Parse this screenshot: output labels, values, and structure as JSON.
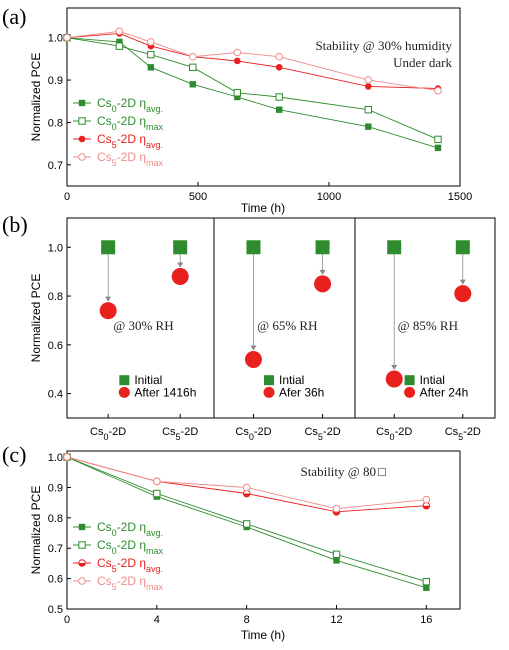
{
  "chart_data": [
    {
      "panel": "(a)",
      "type": "line",
      "xlabel": "Time (h)",
      "ylabel": "Normalized PCE",
      "xlim": [
        0,
        1500
      ],
      "ylim": [
        0.65,
        1.07
      ],
      "xticks": [
        0,
        500,
        1000,
        1500
      ],
      "yticks": [
        0.7,
        0.8,
        0.9,
        1.0
      ],
      "annotation": [
        "Stability @ 30% humidity",
        "Under dark"
      ],
      "legend_position": "left",
      "colors": {
        "cs0": "#2e8b2e",
        "cs5": "#e8201e",
        "cs5_max": "#f08a8a"
      },
      "series": [
        {
          "base": "Cs",
          "sub": "0",
          "mid": "-2D η",
          "tail": "avg.",
          "color": "#2e8b2e",
          "marker": "square-filled",
          "x": [
            0,
            200,
            320,
            480,
            650,
            810,
            1150,
            1416
          ],
          "y": [
            1.0,
            0.99,
            0.93,
            0.89,
            0.86,
            0.83,
            0.79,
            0.74
          ]
        },
        {
          "base": "Cs",
          "sub": "0",
          "mid": "-2D η",
          "tail": "max",
          "color": "#2e8b2e",
          "marker": "square-open",
          "x": [
            0,
            200,
            320,
            480,
            650,
            810,
            1150,
            1416
          ],
          "y": [
            1.0,
            0.98,
            0.96,
            0.93,
            0.87,
            0.86,
            0.83,
            0.76
          ]
        },
        {
          "base": "Cs",
          "sub": "5",
          "mid": "-2D η",
          "tail": "avg.",
          "color": "#e8201e",
          "marker": "circle-filled",
          "x": [
            0,
            200,
            320,
            480,
            650,
            810,
            1150,
            1416
          ],
          "y": [
            1.0,
            1.01,
            0.98,
            0.955,
            0.945,
            0.93,
            0.885,
            0.88
          ]
        },
        {
          "base": "Cs",
          "sub": "5",
          "mid": "-2D η",
          "tail": "max",
          "color": "#f08a8a",
          "marker": "circle-open",
          "x": [
            0,
            200,
            320,
            480,
            650,
            810,
            1150,
            1416
          ],
          "y": [
            1.0,
            1.015,
            0.99,
            0.955,
            0.965,
            0.955,
            0.9,
            0.875
          ]
        }
      ]
    },
    {
      "panel": "(b)",
      "type": "scatter",
      "ylabel": "Normalized PCE",
      "ylim": [
        0.3,
        1.12
      ],
      "yticks": [
        0.4,
        0.6,
        0.8,
        1.0
      ],
      "subpanels": [
        {
          "annotation": "@ 30% RH",
          "legend": [
            "Initial",
            "After 1416h"
          ],
          "categories": [
            {
              "base": "Cs",
              "sub": "0",
              "tail": "-2D"
            },
            {
              "base": "Cs",
              "sub": "5",
              "tail": "-2D"
            }
          ],
          "initial": [
            1.0,
            1.0
          ],
          "after": [
            0.74,
            0.88
          ]
        },
        {
          "annotation": "@ 65% RH",
          "legend": [
            "Intial",
            "Afer 36h"
          ],
          "categories": [
            {
              "base": "Cs",
              "sub": "0",
              "tail": "-2D"
            },
            {
              "base": "Cs",
              "sub": "5",
              "tail": "-2D"
            }
          ],
          "initial": [
            1.0,
            1.0
          ],
          "after": [
            0.54,
            0.85
          ]
        },
        {
          "annotation": "@ 85% RH",
          "legend": [
            "Intial",
            "After 24h"
          ],
          "categories": [
            {
              "base": "Cs",
              "sub": "0",
              "tail": "-2D"
            },
            {
              "base": "Cs",
              "sub": "5",
              "tail": "-2D"
            }
          ],
          "initial": [
            1.0,
            1.0
          ],
          "after": [
            0.46,
            0.81
          ]
        }
      ],
      "colors": {
        "initial": "#2e8b2e",
        "after": "#e8201e",
        "arrow": "#888888"
      }
    },
    {
      "panel": "(c)",
      "type": "line",
      "xlabel": "Time (h)",
      "ylabel": "Normalized PCE",
      "xlim": [
        0,
        17.5
      ],
      "ylim": [
        0.5,
        1.02
      ],
      "xticks": [
        0,
        4,
        8,
        12,
        16
      ],
      "yticks": [
        0.5,
        0.6,
        0.7,
        0.8,
        0.9,
        1.0
      ],
      "annotation": "Stability @ 80",
      "annotation_unit_glyph": "□",
      "legend_position": "left",
      "series": [
        {
          "base": "Cs",
          "sub": "0",
          "mid": "-2D η",
          "tail": "avg.",
          "color": "#2e8b2e",
          "marker": "square-filled",
          "x": [
            0,
            4,
            8,
            12,
            16
          ],
          "y": [
            1.0,
            0.87,
            0.77,
            0.66,
            0.57
          ]
        },
        {
          "base": "Cs",
          "sub": "0",
          "mid": "-2D η",
          "tail": "max",
          "color": "#2e8b2e",
          "marker": "square-open",
          "x": [
            0,
            4,
            8,
            12,
            16
          ],
          "y": [
            1.0,
            0.88,
            0.78,
            0.68,
            0.59
          ]
        },
        {
          "base": "Cs",
          "sub": "5",
          "mid": "-2D η",
          "tail": "avg.",
          "color": "#e8201e",
          "marker": "circle-half",
          "x": [
            0,
            4,
            8,
            12,
            16
          ],
          "y": [
            1.0,
            0.92,
            0.88,
            0.82,
            0.84
          ]
        },
        {
          "base": "Cs",
          "sub": "5",
          "mid": "-2D η",
          "tail": "max",
          "color": "#f08a8a",
          "marker": "circle-open",
          "x": [
            0,
            4,
            8,
            12,
            16
          ],
          "y": [
            1.0,
            0.92,
            0.9,
            0.83,
            0.86
          ]
        }
      ]
    }
  ]
}
